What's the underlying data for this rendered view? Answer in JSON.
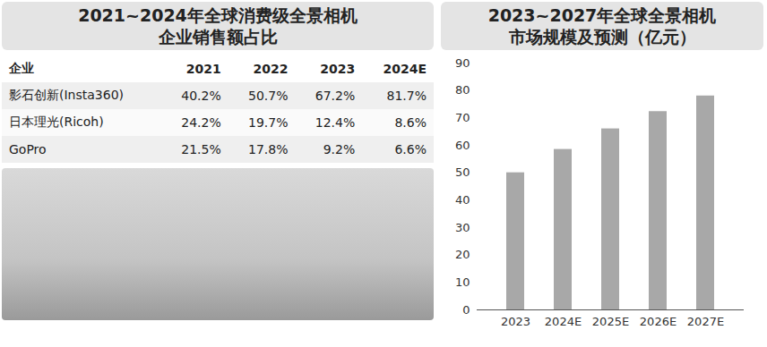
{
  "table": {
    "title": "2021~2024年全球消费级全景相机\n企业销售额占比",
    "header": [
      "企业",
      "2021",
      "2022",
      "2023",
      "2024E"
    ],
    "rows": [
      [
        "影石创新(Insta360)",
        "40.2%",
        "50.7%",
        "67.2%",
        "81.7%"
      ],
      [
        "日本理光(Ricoh)",
        "24.2%",
        "19.7%",
        "12.4%",
        "8.6%"
      ],
      [
        "GoPro",
        "21.5%",
        "17.8%",
        "9.2%",
        "6.6%"
      ]
    ]
  },
  "chart_data": {
    "type": "bar",
    "title": "2023~2027年全球全景相机\n市场规模及预测（亿元）",
    "categories": [
      "2023",
      "2024E",
      "2025E",
      "2026E",
      "2027E"
    ],
    "values": [
      50,
      58.5,
      66,
      72.3,
      78
    ],
    "color": "#a8a8a8",
    "ylim": [
      0,
      90
    ],
    "yticks": [
      0,
      10,
      20,
      30,
      40,
      50,
      60,
      70,
      80,
      90
    ],
    "grid": false
  }
}
